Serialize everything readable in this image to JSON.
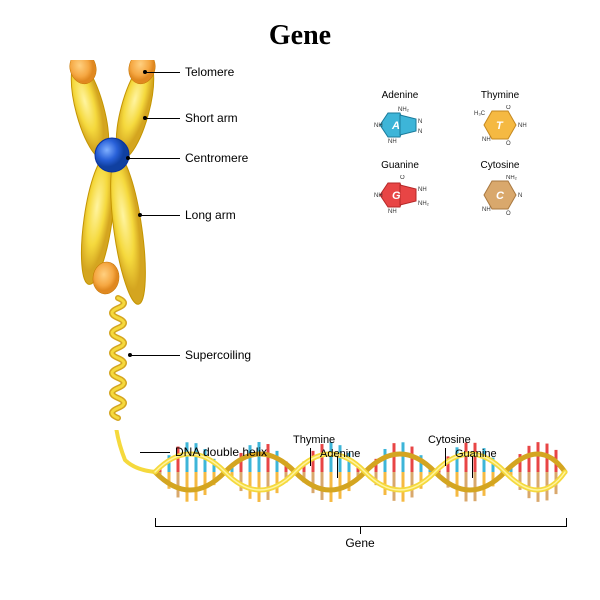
{
  "title": "Gene",
  "chromosome": {
    "labels": {
      "telomere": "Telomere",
      "short_arm": "Short arm",
      "centromere": "Centromere",
      "long_arm": "Long arm",
      "supercoiling": "Supercoiling",
      "dna_helix": "DNA double helix"
    },
    "colors": {
      "body": "#f5d93d",
      "body_highlight": "#fff4a0",
      "body_shadow": "#d4a520",
      "telomere": "#f5a742",
      "telomere_dark": "#e08820",
      "centromere": "#2860d8",
      "centromere_highlight": "#6090f0"
    }
  },
  "bases": {
    "adenine": {
      "label": "Adenine",
      "letter": "A",
      "color": "#3db5d8",
      "stroke": "#1a7a9a"
    },
    "thymine": {
      "label": "Thymine",
      "letter": "T",
      "color": "#f5b942",
      "stroke": "#c48820"
    },
    "guanine": {
      "label": "Guanine",
      "letter": "G",
      "color": "#e84545",
      "stroke": "#b52828"
    },
    "cytosine": {
      "label": "Cytosine",
      "letter": "C",
      "color": "#d9a86c",
      "stroke": "#a87840"
    }
  },
  "dna": {
    "labels": {
      "thymine": "Thymine",
      "adenine": "Adenine",
      "cytosine": "Cytosine",
      "guanine": "Guanine",
      "gene": "Gene"
    },
    "strand_color": "#f5d93d",
    "strand_highlight": "#fff4a0",
    "adenine_color": "#3db5d8",
    "thymine_color": "#f5b942",
    "guanine_color": "#e84545",
    "cytosine_color": "#d9a86c"
  }
}
